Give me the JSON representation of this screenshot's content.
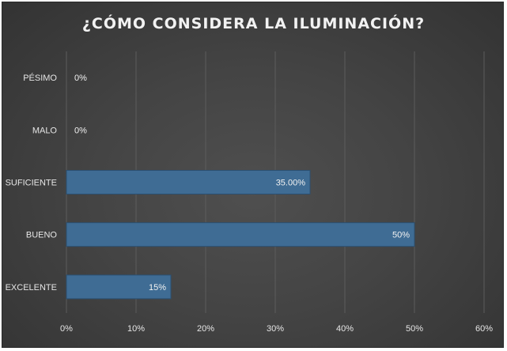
{
  "chart_data": {
    "type": "bar",
    "orientation": "horizontal",
    "title": "¿CÓMO CONSIDERA LA ILUMINACIÓN?",
    "categories": [
      "PÉSIMO",
      "MALO",
      "SUFICIENTE",
      "BUENO",
      "EXCELENTE"
    ],
    "values": [
      0,
      0,
      35,
      50,
      15
    ],
    "data_labels": [
      "0%",
      "0%",
      "35.00%",
      "50%",
      "15%"
    ],
    "xlim": [
      0,
      60
    ],
    "x_ticks": [
      "0%",
      "10%",
      "20%",
      "30%",
      "40%",
      "50%",
      "60%"
    ],
    "grid": true,
    "colors": {
      "bar": "#3f6c94",
      "bar_edge": "#2b4f70",
      "background": "#444444",
      "text": "#e6e6e6"
    }
  }
}
